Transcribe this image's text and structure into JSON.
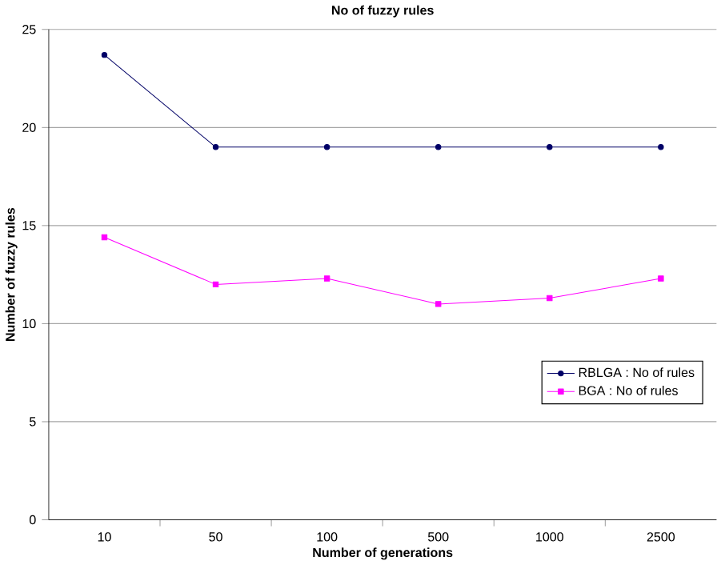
{
  "chart_data": {
    "type": "line",
    "title": "No of fuzzy rules",
    "xlabel": "Number of generations",
    "ylabel": "Number of fuzzy rules",
    "categories": [
      "10",
      "50",
      "100",
      "500",
      "1000",
      "2500"
    ],
    "series": [
      {
        "name": "RBLGA : No of rules",
        "color": "#000066",
        "marker": "circle",
        "values": [
          23.7,
          19,
          19,
          19,
          19,
          19
        ]
      },
      {
        "name": "BGA : No of rules",
        "color": "#ff00ff",
        "marker": "square",
        "values": [
          14.4,
          12,
          12.3,
          11,
          11.3,
          12.3
        ]
      }
    ],
    "ylim": [
      0,
      25
    ],
    "yticks": [
      0,
      5,
      10,
      15,
      20,
      25
    ],
    "grid": "y",
    "legend": "right"
  }
}
